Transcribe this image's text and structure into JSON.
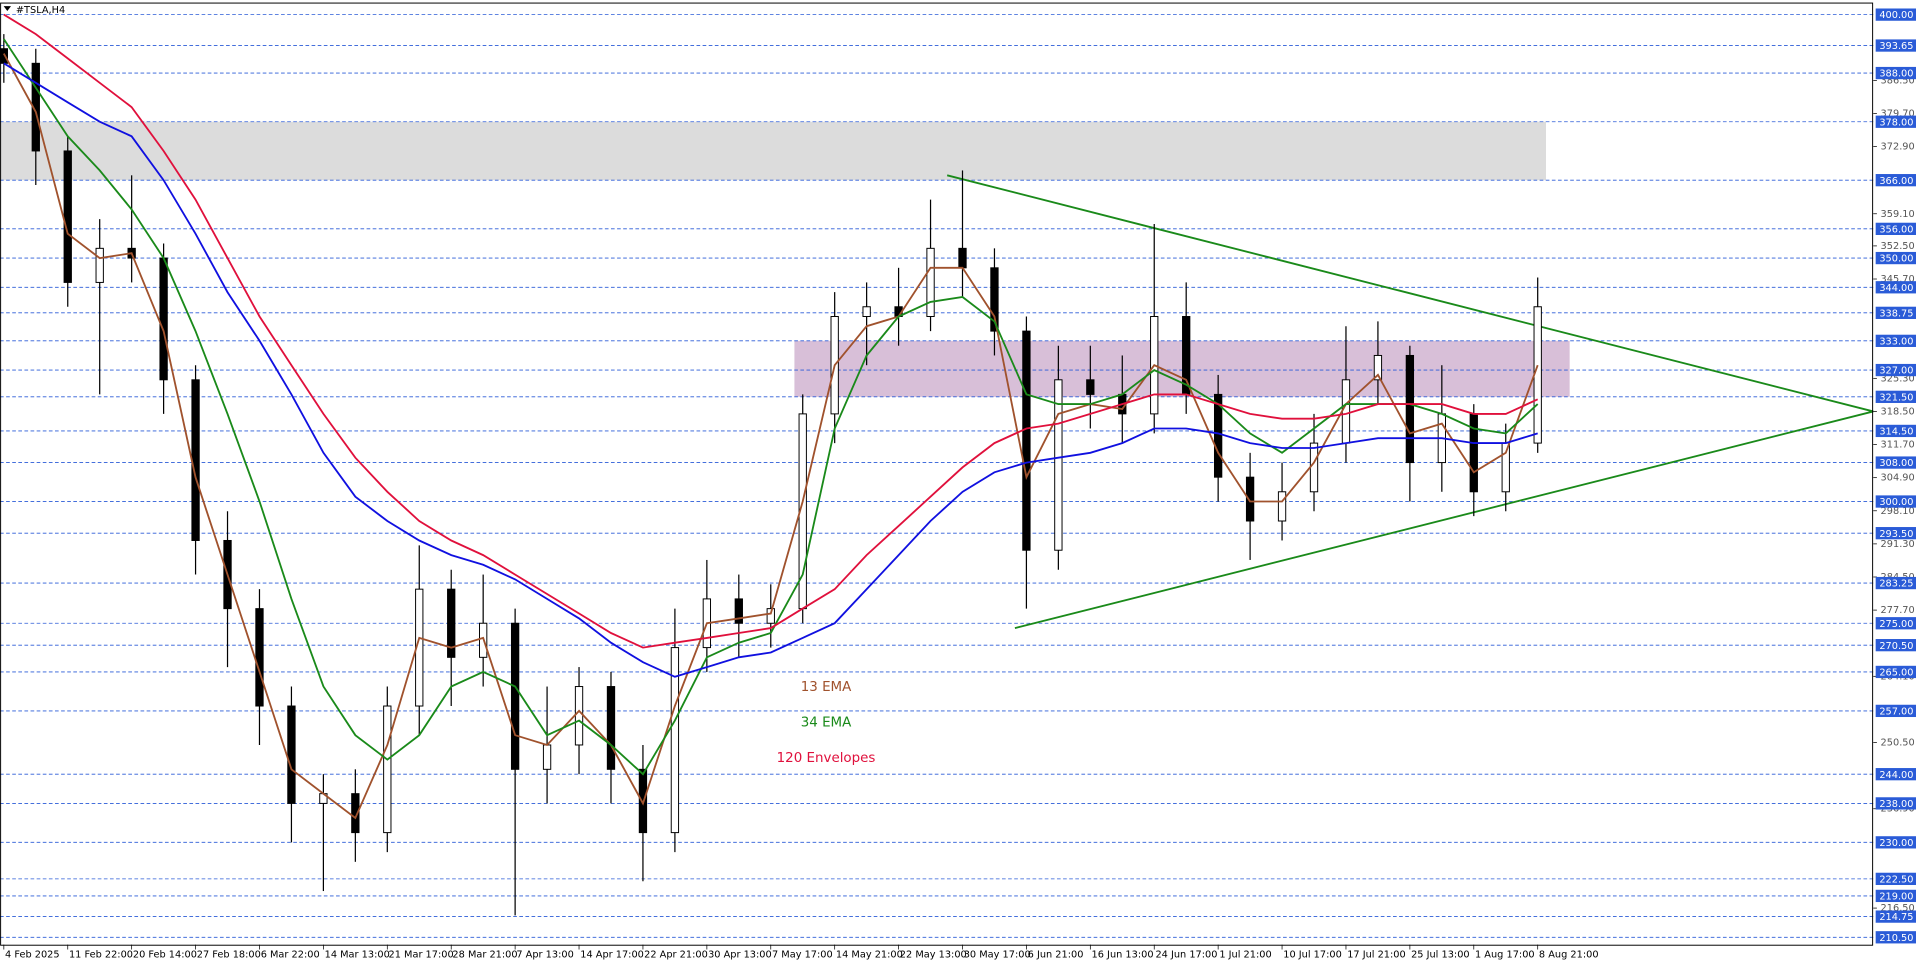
{
  "chart_data": {
    "type": "candlestick",
    "title": "#TSLA,H4",
    "x": [
      0,
      0.5,
      1,
      1.5,
      2,
      2.5,
      3,
      3.5,
      4,
      4.5,
      5,
      5.5,
      6,
      6.5,
      7,
      7.5,
      8,
      8.5,
      9,
      9.5,
      10,
      10.5,
      11,
      11.5,
      12,
      12.5,
      13,
      13.5,
      14,
      14.5,
      15,
      15.5,
      16,
      16.5,
      17,
      17.5,
      18,
      18.5,
      19,
      19.5,
      20,
      20.5,
      21,
      21.5,
      22,
      22.5,
      23,
      23.5,
      24
    ],
    "open": [
      393,
      390,
      372,
      345,
      352,
      350,
      325,
      292,
      278,
      258,
      238,
      240,
      232,
      258,
      282,
      268,
      275,
      245,
      250,
      262,
      245,
      232,
      270,
      280,
      275,
      278,
      318,
      338,
      340,
      338,
      352,
      348,
      335,
      290,
      325,
      322,
      318,
      338,
      322,
      305,
      296,
      302,
      312,
      325,
      330,
      308,
      318,
      302,
      312
    ],
    "high": [
      396,
      393,
      375,
      358,
      367,
      353,
      328,
      298,
      282,
      262,
      244,
      245,
      262,
      291,
      286,
      285,
      278,
      262,
      266,
      265,
      250,
      278,
      288,
      285,
      283,
      322,
      343,
      345,
      348,
      362,
      368,
      352,
      338,
      332,
      332,
      330,
      357,
      345,
      326,
      310,
      308,
      318,
      336,
      337,
      332,
      328,
      320,
      316,
      346
    ],
    "low": [
      386,
      365,
      340,
      322,
      345,
      318,
      285,
      266,
      250,
      230,
      220,
      226,
      228,
      252,
      258,
      262,
      215,
      238,
      244,
      238,
      222,
      228,
      265,
      268,
      270,
      275,
      312,
      328,
      332,
      335,
      342,
      330,
      278,
      286,
      315,
      312,
      314,
      318,
      300,
      288,
      292,
      298,
      308,
      320,
      300,
      302,
      297,
      298,
      310
    ],
    "close": [
      390,
      372,
      345,
      352,
      350,
      325,
      292,
      278,
      258,
      238,
      240,
      232,
      258,
      282,
      268,
      275,
      245,
      250,
      262,
      245,
      232,
      270,
      280,
      275,
      278,
      318,
      338,
      340,
      338,
      352,
      348,
      335,
      290,
      325,
      322,
      318,
      338,
      322,
      305,
      296,
      302,
      312,
      325,
      330,
      308,
      318,
      302,
      312,
      340
    ],
    "series": [
      {
        "name": "13 EMA",
        "color": "#a0522d",
        "values": [
          392,
          380,
          355,
          350,
          351,
          335,
          305,
          285,
          265,
          245,
          240,
          235,
          250,
          272,
          270,
          272,
          252,
          250,
          257,
          250,
          238,
          258,
          275,
          276,
          277,
          300,
          328,
          336,
          338,
          348,
          348,
          338,
          305,
          318,
          320,
          319,
          328,
          325,
          310,
          300,
          300,
          308,
          320,
          326,
          314,
          316,
          306,
          310,
          328
        ]
      },
      {
        "name": "34 EMA",
        "color": "#1a8a1a",
        "values": [
          395,
          385,
          375,
          368,
          360,
          350,
          335,
          318,
          300,
          280,
          262,
          252,
          247,
          252,
          262,
          265,
          262,
          252,
          255,
          250,
          244,
          255,
          268,
          271,
          273,
          285,
          315,
          330,
          338,
          341,
          342,
          337,
          322,
          320,
          320,
          322,
          327,
          324,
          320,
          314,
          310,
          315,
          320,
          320,
          320,
          318,
          315,
          314,
          320
        ]
      },
      {
        "name": "120 Envelopes",
        "color": "#e0103c",
        "values": [
          400,
          396,
          391,
          386,
          381,
          372,
          362,
          350,
          338,
          328,
          318,
          309,
          302,
          296,
          292,
          289,
          285,
          281,
          277,
          273,
          270,
          271,
          272,
          273,
          274,
          278,
          282,
          289,
          295,
          301,
          307,
          312,
          315,
          316,
          318,
          320,
          322,
          322,
          320,
          318,
          317,
          317,
          318,
          320,
          320,
          320,
          318,
          318,
          321
        ]
      },
      {
        "color": "#1010e0",
        "values": [
          390,
          386,
          382,
          378,
          375,
          366,
          355,
          343,
          333,
          322,
          310,
          301,
          296,
          292,
          289,
          287,
          284,
          280,
          276,
          271,
          267,
          264,
          266,
          268,
          269,
          272,
          275,
          282,
          289,
          296,
          302,
          306,
          308,
          309,
          310,
          312,
          315,
          315,
          314,
          312,
          311,
          311,
          312,
          313,
          313,
          313,
          312,
          312,
          314
        ]
      }
    ],
    "bands": [
      {
        "ylim": [
          366,
          378
        ],
        "xlim": [
          -0.06,
          24.13
        ],
        "color": "#dcdcdc"
      },
      {
        "ylim": [
          321.5,
          333
        ],
        "xlim": [
          12.37,
          24.5
        ],
        "color": "#d8bfd8"
      }
    ],
    "trendlines": [
      {
        "x": [
          14.76,
          29.25
        ],
        "y": [
          367,
          318.5
        ],
        "color": "#1a8a1a"
      },
      {
        "x": [
          15.82,
          29.25
        ],
        "y": [
          274,
          318.5
        ],
        "color": "#1a8a1a"
      }
    ],
    "xlim": [
      -0.06,
      29.25
    ],
    "ylim": [
      209,
      402.5
    ],
    "xticks": [
      {
        "value": 0,
        "label": "4 Feb 2025"
      },
      {
        "value": 1,
        "label": "11 Feb 22:00"
      },
      {
        "value": 2,
        "label": "20 Feb 14:00"
      },
      {
        "value": 3,
        "label": "27 Feb 18:00"
      },
      {
        "value": 4,
        "label": "6 Mar 22:00"
      },
      {
        "value": 5,
        "label": "14 Mar 13:00"
      },
      {
        "value": 6,
        "label": "21 Mar 17:00"
      },
      {
        "value": 7,
        "label": "28 Mar 21:00"
      },
      {
        "value": 8,
        "label": "7 Apr 13:00"
      },
      {
        "value": 9,
        "label": "14 Apr 17:00"
      },
      {
        "value": 10,
        "label": "22 Apr 21:00"
      },
      {
        "value": 11,
        "label": "30 Apr 13:00"
      },
      {
        "value": 12,
        "label": "7 May 17:00"
      },
      {
        "value": 13,
        "label": "14 May 21:00"
      },
      {
        "value": 14,
        "label": "22 May 13:00"
      },
      {
        "value": 15,
        "label": "30 May 17:00"
      },
      {
        "value": 16,
        "label": "6 Jun 21:00"
      },
      {
        "value": 17,
        "label": "16 Jun 13:00"
      },
      {
        "value": 18,
        "label": "24 Jun 17:00"
      },
      {
        "value": 19,
        "label": "1 Jul 21:00"
      },
      {
        "value": 20,
        "label": "10 Jul 17:00"
      },
      {
        "value": 21,
        "label": "17 Jul 21:00"
      },
      {
        "value": 22,
        "label": "25 Jul 13:00"
      },
      {
        "value": 23,
        "label": "1 Aug 17:00"
      },
      {
        "value": 24,
        "label": "8 Aug 21:00"
      }
    ],
    "yticks": [
      {
        "value": 386.5,
        "label": "386.50"
      },
      {
        "value": 379.7,
        "label": "379.70"
      },
      {
        "value": 372.9,
        "label": "372.90"
      },
      {
        "value": 359.1,
        "label": "359.10"
      },
      {
        "value": 352.5,
        "label": "352.50"
      },
      {
        "value": 345.7,
        "label": "345.70"
      },
      {
        "value": 325.3,
        "label": "325.30"
      },
      {
        "value": 318.5,
        "label": "318.50"
      },
      {
        "value": 311.7,
        "label": "311.70"
      },
      {
        "value": 304.9,
        "label": "304.90"
      },
      {
        "value": 298.1,
        "label": "298.10"
      },
      {
        "value": 291.3,
        "label": "291.30"
      },
      {
        "value": 284.5,
        "label": "284.50"
      },
      {
        "value": 277.7,
        "label": "277.70"
      },
      {
        "value": 264.1,
        "label": "264.10"
      },
      {
        "value": 250.5,
        "label": "250.50"
      },
      {
        "value": 236.9,
        "label": "236.90"
      },
      {
        "value": 216.5,
        "label": "216.50"
      }
    ],
    "levels": [
      {
        "value": 400,
        "label": "400.00"
      },
      {
        "value": 393.65,
        "label": "393.65"
      },
      {
        "value": 388,
        "label": "388.00"
      },
      {
        "value": 378,
        "label": "378.00"
      },
      {
        "value": 366,
        "label": "366.00"
      },
      {
        "value": 356,
        "label": "356.00"
      },
      {
        "value": 350,
        "label": "350.00"
      },
      {
        "value": 344,
        "label": "344.00"
      },
      {
        "value": 338.75,
        "label": "338.75"
      },
      {
        "value": 333,
        "label": "333.00"
      },
      {
        "value": 327,
        "label": "327.00"
      },
      {
        "value": 321.5,
        "label": "321.50"
      },
      {
        "value": 314.5,
        "label": "314.50"
      },
      {
        "value": 308,
        "label": "308.00"
      },
      {
        "value": 300,
        "label": "300.00"
      },
      {
        "value": 293.5,
        "label": "293.50"
      },
      {
        "value": 283.25,
        "label": "283.25"
      },
      {
        "value": 275,
        "label": "275.00"
      },
      {
        "value": 270.5,
        "label": "270.50"
      },
      {
        "value": 265,
        "label": "265.00"
      },
      {
        "value": 257,
        "label": "257.00"
      },
      {
        "value": 244,
        "label": "244.00"
      },
      {
        "value": 238,
        "label": "238.00"
      },
      {
        "value": 230,
        "label": "230.00"
      },
      {
        "value": 222.5,
        "label": "222.50"
      },
      {
        "value": 219,
        "label": "219.00"
      },
      {
        "value": 214.75,
        "label": "214.75"
      },
      {
        "value": 210.5,
        "label": "210.50"
      }
    ],
    "level_color": "#2a5bd7"
  }
}
